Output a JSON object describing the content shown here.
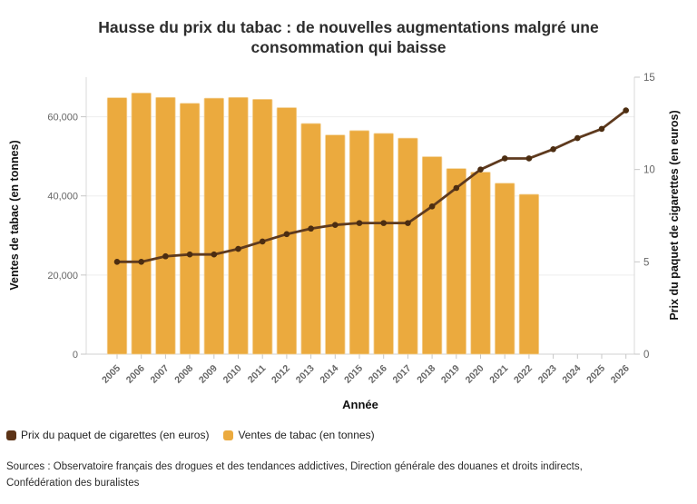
{
  "title": "Hausse du prix du tabac : de nouvelles augmentations malgré une consommation qui baisse",
  "sources": "Sources : Observatoire français des drogues et des tendances addictives, Direction générale des douanes et droits indirects, Confédération des buralistes",
  "legend": {
    "items": [
      {
        "label": "Prix du paquet de cigarettes (en euros)",
        "color": "#5C3317"
      },
      {
        "label": "Ventes de tabac (en tonnes)",
        "color": "#EBAA3E"
      }
    ]
  },
  "chart_data": {
    "type": "bar+line dual-axis",
    "title": "Hausse du prix du tabac : de nouvelles augmentations malgré une consommation qui baisse",
    "xlabel": "Année",
    "categories": [
      2005,
      2006,
      2007,
      2008,
      2009,
      2010,
      2011,
      2012,
      2013,
      2014,
      2015,
      2016,
      2017,
      2018,
      2019,
      2020,
      2021,
      2022,
      2023,
      2024,
      2025,
      2026
    ],
    "left_axis": {
      "title": "Ventes de tabac (en tonnes)",
      "min": 0,
      "max": 70000,
      "tick_values": [
        0,
        20000,
        40000,
        60000
      ],
      "tick_labels": [
        "0",
        "20,000",
        "40,000",
        "60,000"
      ]
    },
    "right_axis": {
      "title": "Prix du paquet de cigarettes (en euros)",
      "min": 0,
      "max": 15,
      "tick_values": [
        0,
        5,
        10,
        15
      ],
      "tick_labels": [
        "0",
        "5",
        "10",
        "15"
      ]
    },
    "series": [
      {
        "name": "Ventes de tabac (en tonnes)",
        "type": "bar",
        "axis": "left",
        "color": "#EBAA3E",
        "values": [
          64800,
          66000,
          64900,
          63400,
          64700,
          64900,
          64400,
          62300,
          58300,
          55400,
          56500,
          55800,
          54600,
          49900,
          46900,
          46000,
          43200,
          40400,
          null,
          null,
          null,
          null
        ]
      },
      {
        "name": "Prix du paquet de cigarettes (en euros)",
        "type": "line",
        "axis": "right",
        "color": "#5E3A1E",
        "point_color": "#4C2D11",
        "values": [
          5.0,
          5.0,
          5.3,
          5.4,
          5.4,
          5.7,
          6.1,
          6.5,
          6.8,
          7.0,
          7.1,
          7.1,
          7.1,
          8.0,
          9.0,
          10.0,
          10.6,
          10.6,
          11.1,
          11.7,
          12.2,
          13.2
        ]
      }
    ],
    "grid": "horizontal",
    "legend_position": "bottom-left"
  }
}
